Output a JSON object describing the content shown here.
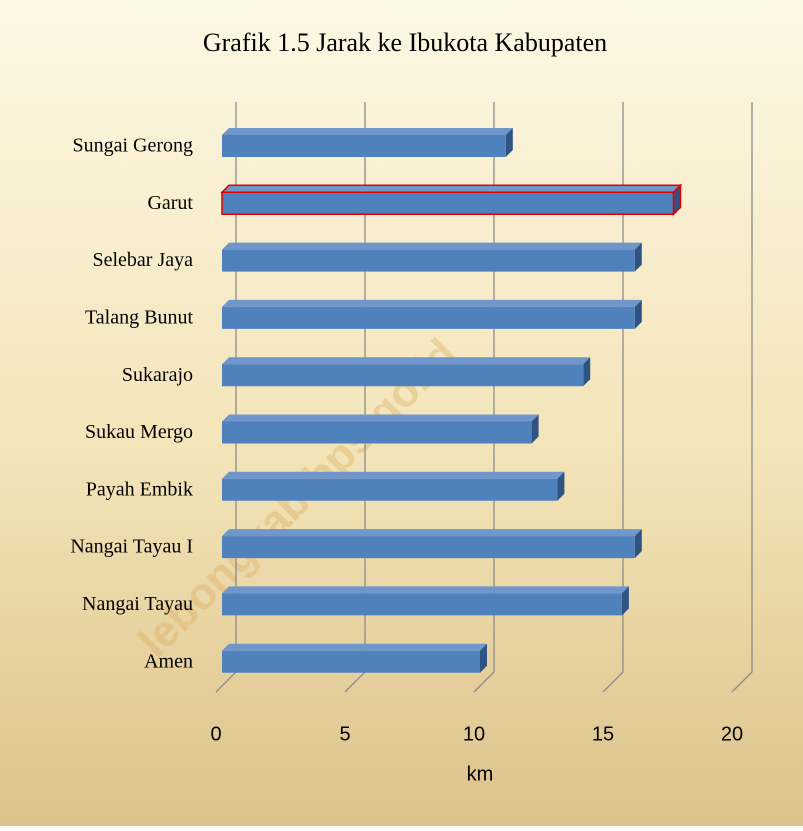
{
  "chart_data": {
    "type": "bar",
    "title": "Grafik 1.5  Jarak ke Ibukota Kabupaten",
    "categories": [
      "Sungai Gerong",
      "Garut",
      "Selebar Jaya",
      "Talang Bunut",
      "Sukarajo",
      "Sukau Mergo",
      "Payah Embik",
      "Nangai Tayau I",
      "Nangai Tayau",
      "Amen"
    ],
    "values": [
      11,
      17.5,
      16,
      16,
      14,
      12,
      13,
      16,
      15.5,
      10
    ],
    "color": "#4f81bd",
    "highlight": "Garut",
    "xlabel": "km",
    "xlim": [
      0,
      20
    ],
    "xticks": [
      0,
      5,
      10,
      15,
      20
    ],
    "grid": true,
    "watermark": "lebongkab.bps.go.id"
  }
}
